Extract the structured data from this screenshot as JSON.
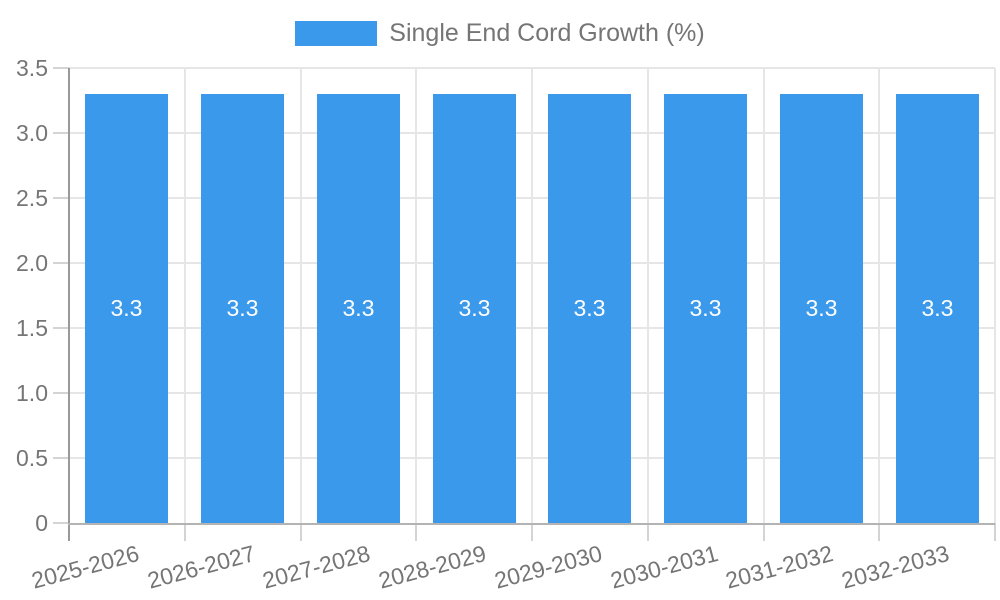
{
  "legend": {
    "label": "Single End Cord Growth (%)"
  },
  "chart_data": {
    "type": "bar",
    "title": "",
    "categories": [
      "2025-2026",
      "2026-2027",
      "2027-2028",
      "2028-2029",
      "2029-2030",
      "2030-2031",
      "2031-2032",
      "2032-2033"
    ],
    "series": [
      {
        "name": "Single End Cord Growth (%)",
        "values": [
          3.3,
          3.3,
          3.3,
          3.3,
          3.3,
          3.3,
          3.3,
          3.3
        ]
      }
    ],
    "bar_value_labels": [
      "3.3",
      "3.3",
      "3.3",
      "3.3",
      "3.3",
      "3.3",
      "3.3",
      "3.3"
    ],
    "xlabel": "",
    "ylabel": "",
    "ylim": [
      0,
      3.5
    ],
    "ytick_labels": [
      "0",
      "0.5",
      "1.0",
      "1.5",
      "2.0",
      "2.5",
      "3.0",
      "3.5"
    ],
    "yticks": [
      0,
      0.5,
      1.0,
      1.5,
      2.0,
      2.5,
      3.0,
      3.5
    ],
    "grid": "both",
    "legend_position": "top-center",
    "x_label_rotation_deg": -15,
    "colors": {
      "bar": "#3B99EC",
      "axis_text": "#757575",
      "bar_label_text": "#FFFFFF",
      "gridline": "#E6E6E6",
      "tick": "#D4D4D4",
      "y_axis_line": "#999999",
      "baseline": "#B3B3B3"
    }
  }
}
